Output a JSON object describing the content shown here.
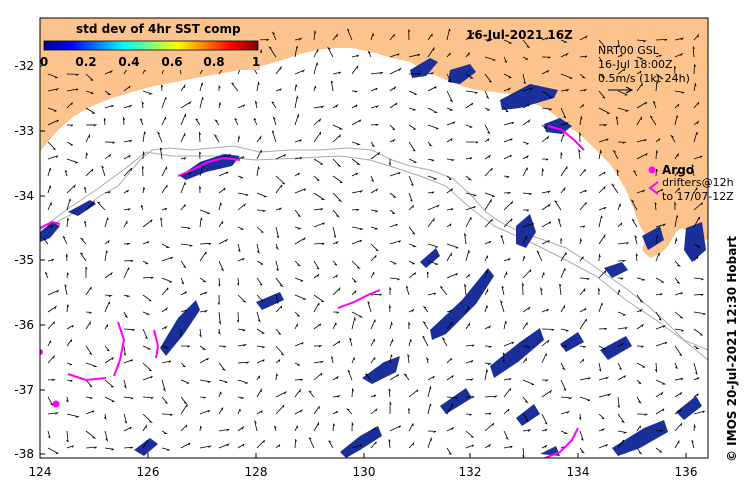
{
  "title": "16-Jul-2021 16Z",
  "colorbar": {
    "label": "std dev of 4hr SST comp",
    "ticks": [
      "0",
      "0.2",
      "0.4",
      "0.6",
      "0.8",
      "1"
    ]
  },
  "current_legend": {
    "line1": "NRT00 GSL",
    "line2": "16-Jul 18:00Z",
    "line3": "0.5m/s (1kt 24h)"
  },
  "argo_legend": {
    "argo": "Argo",
    "drifters_line1": "drifters@12h",
    "drifters_line2": "to 17/07-12Z"
  },
  "credit": "© IMOS 20-Jul-2021 12:30 Hobart",
  "axes": {
    "x_ticks": [
      "124",
      "126",
      "128",
      "130",
      "132",
      "134",
      "136"
    ],
    "y_ticks": [
      "-32",
      "-33",
      "-34",
      "-35",
      "-36",
      "-37",
      "-38"
    ]
  },
  "colors": {
    "land": "#fcc48c",
    "bathymetry": "#aaaaaa",
    "sst_low": "#1a2f9a",
    "drifter": "#ff00ff",
    "background": "#ffffff"
  }
}
